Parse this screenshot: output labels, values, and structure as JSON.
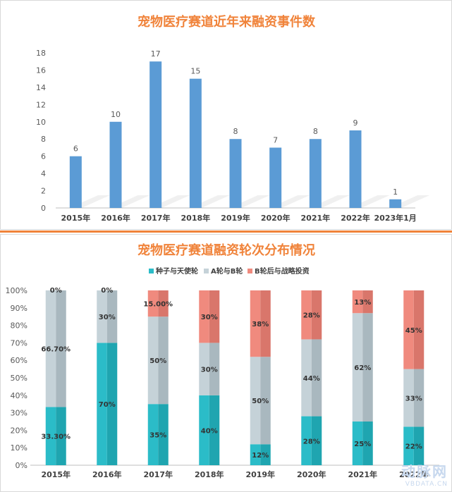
{
  "chart_data": [
    {
      "type": "bar",
      "title": "宠物医疗赛道近年来融资事件数",
      "categories": [
        "2015年",
        "2016年",
        "2017年",
        "2018年",
        "2019年",
        "2020年",
        "2021年",
        "2022年",
        "2023年1月"
      ],
      "values": [
        6,
        10,
        17,
        15,
        8,
        7,
        8,
        9,
        1
      ],
      "value_labels": [
        "6",
        "10",
        "17",
        "15",
        "8",
        "7",
        "8",
        "9",
        "1"
      ],
      "ylim": [
        0,
        18
      ],
      "yticks": [
        "0",
        "2",
        "4",
        "6",
        "8",
        "10",
        "12",
        "14",
        "16",
        "18"
      ],
      "bar_color": "#5b9bd5",
      "grid": false
    },
    {
      "type": "bar",
      "stacked": true,
      "title": "宠物医疗赛道融资轮次分布情况",
      "categories": [
        "2015年",
        "2016年",
        "2017年",
        "2018年",
        "2019年",
        "2020年",
        "2021年",
        "2022年"
      ],
      "legend_position": "top",
      "ylim": [
        0,
        100
      ],
      "yticks": [
        "0%",
        "10%",
        "20%",
        "30%",
        "40%",
        "50%",
        "60%",
        "70%",
        "80%",
        "90%",
        "100%"
      ],
      "series": [
        {
          "name": "种子与天使轮",
          "color": "#2bbcc8",
          "values": [
            33.3,
            70,
            35,
            40,
            12,
            28,
            25,
            22
          ],
          "labels": [
            "33.30%",
            "70%",
            "35%",
            "40%",
            "12%",
            "28%",
            "25%",
            "22%"
          ]
        },
        {
          "name": "A轮与B轮",
          "color": "#c5d2d8",
          "values": [
            66.7,
            30,
            50,
            30,
            50,
            44,
            62,
            33
          ],
          "labels": [
            "66.70%",
            "30%",
            "50%",
            "30%",
            "50%",
            "44%",
            "62%",
            "33%"
          ]
        },
        {
          "name": "B轮后与战略投资",
          "color": "#f08a7e",
          "values": [
            0,
            0,
            15,
            30,
            38,
            28,
            13,
            45
          ],
          "labels": [
            "0%",
            "0%",
            "15.00%",
            "30%",
            "38%",
            "28%",
            "13%",
            "45%"
          ]
        }
      ]
    }
  ],
  "watermark": {
    "text": "动脉网",
    "sub": "VBDATA.CN"
  }
}
